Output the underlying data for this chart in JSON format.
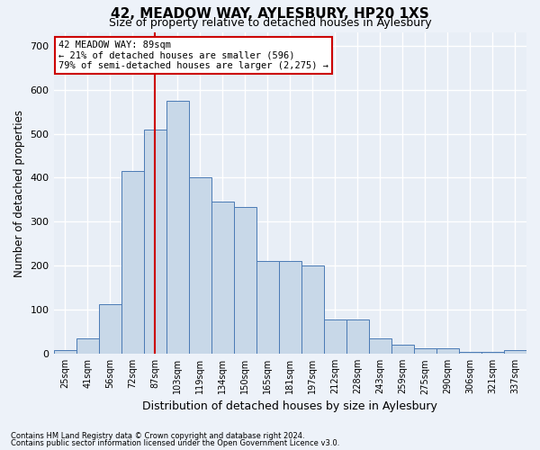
{
  "title": "42, MEADOW WAY, AYLESBURY, HP20 1XS",
  "subtitle": "Size of property relative to detached houses in Aylesbury",
  "xlabel": "Distribution of detached houses by size in Aylesbury",
  "ylabel": "Number of detached properties",
  "categories": [
    "25sqm",
    "41sqm",
    "56sqm",
    "72sqm",
    "87sqm",
    "103sqm",
    "119sqm",
    "134sqm",
    "150sqm",
    "165sqm",
    "181sqm",
    "197sqm",
    "212sqm",
    "228sqm",
    "243sqm",
    "259sqm",
    "275sqm",
    "290sqm",
    "306sqm",
    "321sqm",
    "337sqm"
  ],
  "values": [
    8,
    35,
    112,
    415,
    510,
    575,
    400,
    345,
    333,
    210,
    210,
    200,
    78,
    78,
    35,
    20,
    12,
    12,
    4,
    5,
    8
  ],
  "bar_color": "#c8d8e8",
  "bar_edge_color": "#4a7ab5",
  "vline_color": "#cc0000",
  "vline_x_index": 4,
  "annotation_line1": "42 MEADOW WAY: 89sqm",
  "annotation_line2": "← 21% of detached houses are smaller (596)",
  "annotation_line3": "79% of semi-detached houses are larger (2,275) →",
  "ylim": [
    0,
    730
  ],
  "yticks": [
    0,
    100,
    200,
    300,
    400,
    500,
    600,
    700
  ],
  "fig_bg_color": "#edf2f9",
  "ax_bg_color": "#e8eef6",
  "grid_color": "#ffffff",
  "footer_line1": "Contains HM Land Registry data © Crown copyright and database right 2024.",
  "footer_line2": "Contains public sector information licensed under the Open Government Licence v3.0."
}
